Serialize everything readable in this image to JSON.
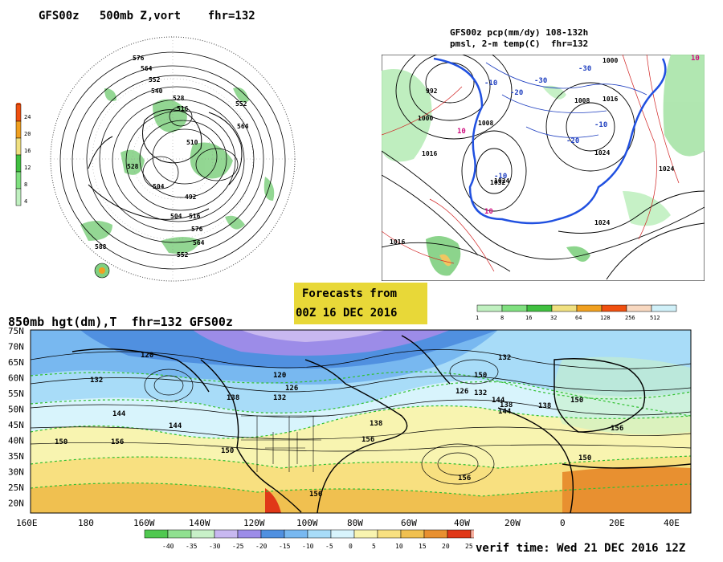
{
  "panels": {
    "top_left": {
      "title": "GFS00z   500mb Z,vort    fhr=132",
      "contour_labels": [
        "576",
        "564",
        "552",
        "540",
        "528",
        "516",
        "510",
        "504",
        "492",
        "588",
        "552",
        "564",
        "576",
        "528",
        "516",
        "504",
        "552",
        "564"
      ],
      "colorbar": {
        "labels": [
          "24",
          "20",
          "16",
          "12",
          "8",
          "4"
        ],
        "colors": [
          "#f05010",
          "#f0a020",
          "#f0e080",
          "#40c040",
          "#80e080",
          "#c0f0c0"
        ]
      }
    },
    "top_right": {
      "title_line1": "GFS00z pcp(mm/dy) 108-132h",
      "title_line2": "pmsl, 2-m temp(C)  fhr=132",
      "contour_labels": [
        "992",
        "1000",
        "1008",
        "1016",
        "1024",
        "1032",
        "1024",
        "1016",
        "1008",
        "1000",
        "1024",
        "1016",
        "1024"
      ],
      "temp_labels": [
        "-10",
        "-20",
        "-30",
        "-10",
        "-20",
        "-30",
        "10",
        "10",
        "-10",
        "10"
      ],
      "colorbar": {
        "labels": [
          "1",
          "8",
          "16",
          "32",
          "64",
          "128",
          "256",
          "512"
        ],
        "colors": [
          "#c0f0c0",
          "#80e080",
          "#40c040",
          "#f0e080",
          "#f0a020",
          "#f05010",
          "#f8d8c0",
          "#d0f0f8"
        ]
      }
    },
    "bottom": {
      "title": "850mb hgt(dm),T  fhr=132 GFS00z",
      "lat_labels": [
        "75N",
        "70N",
        "65N",
        "60N",
        "55N",
        "50N",
        "45N",
        "40N",
        "35N",
        "30N",
        "25N",
        "20N"
      ],
      "lon_labels": [
        "160E",
        "180",
        "160W",
        "140W",
        "120W",
        "100W",
        "80W",
        "60W",
        "40W",
        "20W",
        "0",
        "20E",
        "40E"
      ],
      "height_labels": [
        "120",
        "132",
        "138",
        "144",
        "150",
        "156",
        "120",
        "126",
        "132",
        "138",
        "144",
        "150",
        "156",
        "156",
        "150",
        "144",
        "138",
        "132",
        "126",
        "144",
        "150",
        "156",
        "132",
        "138",
        "150",
        "156"
      ],
      "colorbar": {
        "labels": [
          "-40",
          "-35",
          "-30",
          "-25",
          "-20",
          "-15",
          "-10",
          "-5",
          "0",
          "5",
          "10",
          "15",
          "20",
          "25"
        ],
        "colors": [
          "#50c850",
          "#90e090",
          "#c8f0c8",
          "#c8b8f0",
          "#9c8ce8",
          "#5090e0",
          "#78b8f0",
          "#a8dcf8",
          "#d8f4fc",
          "#f8f4b0",
          "#f8e080",
          "#f0c050",
          "#e89030",
          "#e03818",
          "#f8b0a0"
        ]
      }
    }
  },
  "forecast_box": {
    "line1": "Forecasts from",
    "line2": "00Z 16 DEC 2016"
  },
  "verif_time": "verif time: Wed 21 DEC 2016 12Z"
}
